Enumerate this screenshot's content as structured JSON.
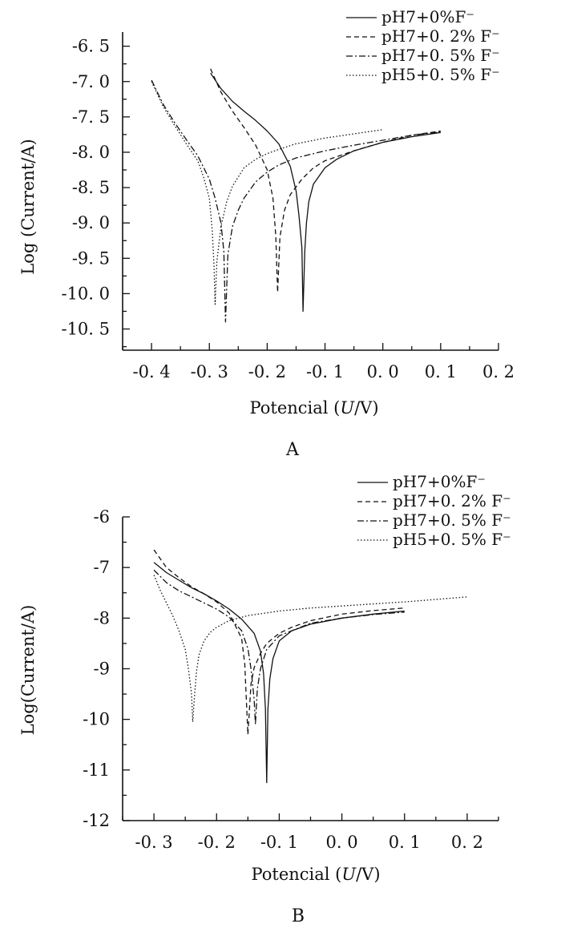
{
  "chart_data": [
    {
      "panel": "A",
      "type": "line",
      "xlabel_pre": "Potencial (",
      "xlabel_var": "U",
      "xlabel_post": "/V)",
      "ylabel": "Log (Current/A)",
      "xlim": [
        -0.45,
        0.2
      ],
      "ylim": [
        -10.8,
        -6.3
      ],
      "xticks": [
        -0.4,
        -0.3,
        -0.2,
        -0.1,
        0.0,
        0.1,
        0.2
      ],
      "xtick_labels": [
        "-0. 4",
        "-0. 3",
        "-0. 2",
        "-0. 1",
        "0. 0",
        "0. 1",
        "0. 2"
      ],
      "yticks": [
        -6.5,
        -7.0,
        -7.5,
        -8.0,
        -8.5,
        -9.0,
        -9.5,
        -10.0,
        -10.5
      ],
      "ytick_labels": [
        "-6. 5",
        "-7. 0",
        "-7. 5",
        "-8. 0",
        "-8. 5",
        "-9. 0",
        "-9. 5",
        "-10. 0",
        "-10. 5"
      ],
      "grid": false,
      "legend_position": "top-right",
      "series": [
        {
          "name": "pH7+0%F⁻",
          "style": "solid",
          "color": "#111111",
          "x": [
            -0.298,
            -0.28,
            -0.26,
            -0.24,
            -0.22,
            -0.2,
            -0.18,
            -0.16,
            -0.15,
            -0.145,
            -0.14,
            -0.138,
            -0.135,
            -0.132,
            -0.128,
            -0.12,
            -0.1,
            -0.08,
            -0.05,
            0.0,
            0.05,
            0.1
          ],
          "y": [
            -6.88,
            -7.1,
            -7.28,
            -7.42,
            -7.55,
            -7.7,
            -7.88,
            -8.2,
            -8.55,
            -8.9,
            -9.35,
            -10.25,
            -9.4,
            -9.0,
            -8.7,
            -8.45,
            -8.22,
            -8.1,
            -7.98,
            -7.86,
            -7.78,
            -7.72
          ]
        },
        {
          "name": "pH7+0. 2% F⁻",
          "style": "dashed",
          "color": "#111111",
          "x": [
            -0.298,
            -0.28,
            -0.26,
            -0.24,
            -0.22,
            -0.2,
            -0.19,
            -0.185,
            -0.182,
            -0.178,
            -0.17,
            -0.16,
            -0.14,
            -0.12,
            -0.1,
            -0.05,
            0.0,
            0.05,
            0.1
          ],
          "y": [
            -6.82,
            -7.15,
            -7.42,
            -7.65,
            -7.9,
            -8.25,
            -8.65,
            -9.2,
            -9.98,
            -9.2,
            -8.82,
            -8.6,
            -8.38,
            -8.22,
            -8.12,
            -7.98,
            -7.86,
            -7.76,
            -7.7
          ]
        },
        {
          "name": "pH7+0. 5% F⁻",
          "style": "dashdot",
          "color": "#111111",
          "x": [
            -0.4,
            -0.38,
            -0.36,
            -0.34,
            -0.32,
            -0.3,
            -0.29,
            -0.28,
            -0.275,
            -0.272,
            -0.268,
            -0.26,
            -0.25,
            -0.24,
            -0.22,
            -0.2,
            -0.18,
            -0.15,
            -0.1,
            -0.05,
            0.0,
            0.05,
            0.1
          ],
          "y": [
            -6.98,
            -7.32,
            -7.58,
            -7.82,
            -8.05,
            -8.38,
            -8.65,
            -9.0,
            -9.4,
            -10.4,
            -9.45,
            -9.05,
            -8.82,
            -8.65,
            -8.42,
            -8.28,
            -8.18,
            -8.08,
            -7.98,
            -7.9,
            -7.83,
            -7.76,
            -7.71
          ]
        },
        {
          "name": "pH5+0. 5% F⁻",
          "style": "dotted",
          "color": "#111111",
          "x": [
            -0.4,
            -0.38,
            -0.36,
            -0.34,
            -0.32,
            -0.31,
            -0.3,
            -0.295,
            -0.292,
            -0.29,
            -0.287,
            -0.28,
            -0.27,
            -0.26,
            -0.24,
            -0.22,
            -0.2,
            -0.18,
            -0.15,
            -0.1,
            -0.05,
            0.0
          ],
          "y": [
            -7.0,
            -7.35,
            -7.62,
            -7.88,
            -8.12,
            -8.35,
            -8.65,
            -9.1,
            -9.6,
            -10.15,
            -9.55,
            -9.05,
            -8.7,
            -8.48,
            -8.22,
            -8.1,
            -8.02,
            -7.96,
            -7.88,
            -7.8,
            -7.74,
            -7.68
          ]
        }
      ]
    },
    {
      "panel": "B",
      "type": "line",
      "xlabel_pre": "Potencial (",
      "xlabel_var": "U",
      "xlabel_post": "/V)",
      "ylabel": "Log(Current/A)",
      "xlim": [
        -0.35,
        0.25
      ],
      "ylim": [
        -12,
        -6
      ],
      "xticks": [
        -0.3,
        -0.2,
        -0.1,
        0.0,
        0.1,
        0.2
      ],
      "xtick_labels": [
        "-0. 3",
        "-0. 2",
        "-0. 1",
        "0. 0",
        "0. 1",
        "0. 2"
      ],
      "yticks": [
        -6,
        -7,
        -8,
        -9,
        -10,
        -11,
        -12
      ],
      "ytick_labels": [
        "-6",
        "-7",
        "-8",
        "-9",
        "-10",
        "-11",
        "-12"
      ],
      "grid": false,
      "legend_position": "top-right",
      "series": [
        {
          "name": "pH7+0%F⁻",
          "style": "solid",
          "color": "#111111",
          "x": [
            -0.3,
            -0.28,
            -0.26,
            -0.24,
            -0.22,
            -0.2,
            -0.18,
            -0.16,
            -0.14,
            -0.13,
            -0.125,
            -0.122,
            -0.12,
            -0.118,
            -0.115,
            -0.11,
            -0.1,
            -0.08,
            -0.05,
            0.0,
            0.05,
            0.1
          ],
          "y": [
            -6.9,
            -7.1,
            -7.25,
            -7.4,
            -7.52,
            -7.66,
            -7.82,
            -8.02,
            -8.3,
            -8.65,
            -9.1,
            -9.8,
            -11.25,
            -9.8,
            -9.2,
            -8.8,
            -8.45,
            -8.25,
            -8.12,
            -8.0,
            -7.92,
            -7.86
          ]
        },
        {
          "name": "pH7+0. 2% F⁻",
          "style": "dashed",
          "color": "#111111",
          "x": [
            -0.3,
            -0.28,
            -0.26,
            -0.24,
            -0.22,
            -0.2,
            -0.18,
            -0.16,
            -0.155,
            -0.15,
            -0.145,
            -0.14,
            -0.13,
            -0.12,
            -0.1,
            -0.08,
            -0.05,
            0.0,
            0.05,
            0.1
          ],
          "y": [
            -6.65,
            -7.0,
            -7.2,
            -7.38,
            -7.52,
            -7.68,
            -7.9,
            -8.4,
            -8.9,
            -10.3,
            -9.3,
            -8.98,
            -8.7,
            -8.5,
            -8.3,
            -8.18,
            -8.05,
            -7.92,
            -7.85,
            -7.8
          ]
        },
        {
          "name": "pH7+0. 5% F⁻",
          "style": "dashdot",
          "color": "#111111",
          "x": [
            -0.3,
            -0.28,
            -0.26,
            -0.24,
            -0.22,
            -0.2,
            -0.18,
            -0.16,
            -0.15,
            -0.145,
            -0.14,
            -0.138,
            -0.135,
            -0.13,
            -0.12,
            -0.1,
            -0.05,
            0.0,
            0.05,
            0.1
          ],
          "y": [
            -7.05,
            -7.3,
            -7.46,
            -7.58,
            -7.7,
            -7.82,
            -7.98,
            -8.25,
            -8.6,
            -9.0,
            -9.6,
            -10.1,
            -9.4,
            -9.0,
            -8.62,
            -8.35,
            -8.1,
            -8.0,
            -7.93,
            -7.88
          ]
        },
        {
          "name": "pH5+0. 5% F⁻",
          "style": "dotted",
          "color": "#111111",
          "x": [
            -0.3,
            -0.29,
            -0.28,
            -0.27,
            -0.26,
            -0.25,
            -0.245,
            -0.24,
            -0.238,
            -0.235,
            -0.232,
            -0.228,
            -0.22,
            -0.21,
            -0.2,
            -0.18,
            -0.15,
            -0.1,
            -0.05,
            0.0,
            0.05,
            0.1,
            0.15,
            0.2
          ],
          "y": [
            -7.15,
            -7.45,
            -7.7,
            -7.95,
            -8.25,
            -8.62,
            -9.0,
            -9.5,
            -10.05,
            -9.5,
            -9.05,
            -8.72,
            -8.45,
            -8.28,
            -8.18,
            -8.05,
            -7.95,
            -7.86,
            -7.8,
            -7.76,
            -7.72,
            -7.68,
            -7.63,
            -7.58
          ]
        }
      ]
    }
  ]
}
